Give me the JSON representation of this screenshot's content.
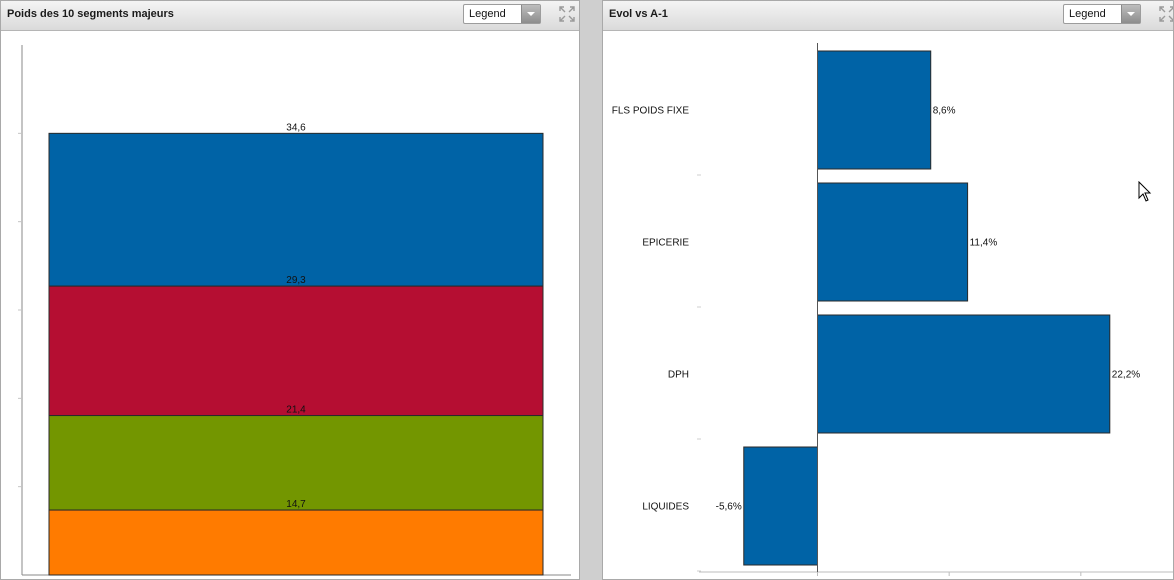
{
  "panels": {
    "left": {
      "title": "Poids des 10 segments majeurs",
      "legend_select": "Legend"
    },
    "right": {
      "title": "Evol vs A-1",
      "legend_select": "Legend"
    }
  },
  "icons": {
    "expand": "expand-icon",
    "cursor": "mouse-pointer-icon",
    "dropdown": "chevron-down-icon"
  },
  "chart_data": [
    {
      "type": "bar",
      "stacked": true,
      "categories": [
        ""
      ],
      "series": [
        {
          "values": [
            34.6
          ],
          "color": "#0063a6"
        },
        {
          "values": [
            29.3
          ],
          "color": "#b50e32"
        },
        {
          "values": [
            21.4
          ],
          "color": "#739600"
        },
        {
          "values": [
            14.7
          ],
          "color": "#ff7b00"
        }
      ],
      "data_labels": [
        "34,6",
        "29,3",
        "21,4",
        "14,7"
      ],
      "ylim": [
        0,
        120
      ],
      "grid": false
    },
    {
      "type": "bar",
      "orientation": "horizontal",
      "categories": [
        "FLS POIDS FIXE",
        "EPICERIE",
        "DPH",
        "LIQUIDES"
      ],
      "values": [
        8.6,
        11.4,
        22.2,
        -5.6
      ],
      "data_labels": [
        "8,6%",
        "11,4%",
        "22,2%",
        "-5,6%"
      ],
      "color": "#0063a6",
      "xlim": [
        -9,
        27
      ],
      "grid": false
    }
  ]
}
